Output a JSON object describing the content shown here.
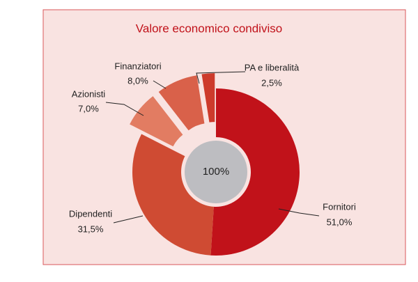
{
  "chart_data": {
    "type": "donut",
    "title": "Valore economico condiviso",
    "center_label": "100%",
    "categories": [
      "Fornitori",
      "Dipendenti",
      "Azionisti",
      "Finanziatori",
      "PA e liberalità"
    ],
    "values": [
      51.0,
      31.5,
      7.0,
      8.0,
      2.5
    ],
    "value_labels": [
      "51,0%",
      "31,5%",
      "7,0%",
      "8,0%",
      "2,5%"
    ],
    "colors": [
      "#c1121a",
      "#cf4b33",
      "#e27c62",
      "#d9614a",
      "#cd3a2b"
    ],
    "exploded": [
      false,
      false,
      true,
      true,
      true
    ]
  }
}
